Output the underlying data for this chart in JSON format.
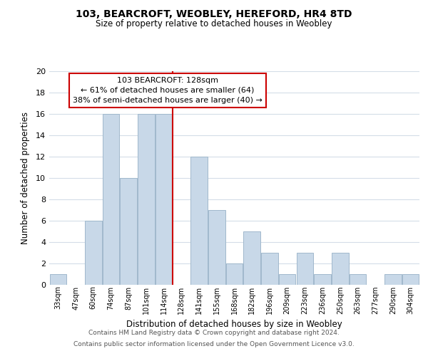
{
  "title": "103, BEARCROFT, WEOBLEY, HEREFORD, HR4 8TD",
  "subtitle": "Size of property relative to detached houses in Weobley",
  "xlabel": "Distribution of detached houses by size in Weobley",
  "ylabel": "Number of detached properties",
  "bar_labels": [
    "33sqm",
    "47sqm",
    "60sqm",
    "74sqm",
    "87sqm",
    "101sqm",
    "114sqm",
    "128sqm",
    "141sqm",
    "155sqm",
    "168sqm",
    "182sqm",
    "196sqm",
    "209sqm",
    "223sqm",
    "236sqm",
    "250sqm",
    "263sqm",
    "277sqm",
    "290sqm",
    "304sqm"
  ],
  "bar_values": [
    1,
    0,
    6,
    16,
    10,
    16,
    16,
    0,
    12,
    7,
    2,
    5,
    3,
    1,
    3,
    1,
    3,
    1,
    0,
    1,
    1
  ],
  "bar_color": "#c8d8e8",
  "bar_edge_color": "#a0b8cc",
  "reference_line_x_label": "128sqm",
  "reference_line_color": "#cc0000",
  "annotation_title": "103 BEARCROFT: 128sqm",
  "annotation_line1": "← 61% of detached houses are smaller (64)",
  "annotation_line2": "38% of semi-detached houses are larger (40) →",
  "annotation_box_edge_color": "#cc0000",
  "ylim": [
    0,
    20
  ],
  "yticks": [
    0,
    2,
    4,
    6,
    8,
    10,
    12,
    14,
    16,
    18,
    20
  ],
  "footer_line1": "Contains HM Land Registry data © Crown copyright and database right 2024.",
  "footer_line2": "Contains public sector information licensed under the Open Government Licence v3.0.",
  "bg_color": "#ffffff",
  "grid_color": "#d4dde8"
}
